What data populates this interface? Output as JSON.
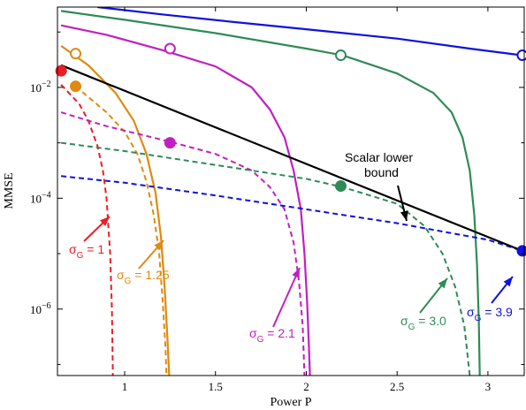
{
  "chart_data": {
    "type": "line",
    "xlabel": "Power P",
    "ylabel": "MMSE",
    "x_range": [
      0.63,
      3.2
    ],
    "ylim_log10": [
      -7.2,
      -0.55
    ],
    "log_y": true,
    "grid": false,
    "x_ticks": [
      {
        "value": 1,
        "label": "1"
      },
      {
        "value": 1.5,
        "label": "1.5"
      },
      {
        "value": 2,
        "label": "2"
      },
      {
        "value": 2.5,
        "label": "2.5"
      },
      {
        "value": 3,
        "label": "3"
      }
    ],
    "y_ticks": [
      {
        "exp": -2,
        "base": "10",
        "sup": "−2"
      },
      {
        "exp": -4,
        "base": "10",
        "sup": "−4"
      },
      {
        "exp": -6,
        "base": "10",
        "sup": "−6"
      }
    ],
    "series": [
      {
        "key": "g1",
        "color": "#ee1c24",
        "solid": [
          [
            0.65,
            -1.6
          ],
          [
            0.66,
            -1.64
          ],
          [
            0.68,
            -1.72
          ]
        ],
        "dashed": [
          [
            0.65,
            -1.95
          ],
          [
            0.75,
            -2.3
          ],
          [
            0.8,
            -2.6
          ],
          [
            0.85,
            -3.05
          ],
          [
            0.88,
            -3.5
          ],
          [
            0.9,
            -4.0
          ],
          [
            0.92,
            -5.0
          ],
          [
            0.93,
            -6.0
          ],
          [
            0.935,
            -7.2
          ]
        ],
        "marker": {
          "x": 0.65,
          "y": -1.7,
          "filled": true
        }
      },
      {
        "key": "g125",
        "color": "#e08a10",
        "solid": [
          [
            0.65,
            -1.25
          ],
          [
            0.8,
            -1.6
          ],
          [
            0.95,
            -2.1
          ],
          [
            1.05,
            -2.6
          ],
          [
            1.12,
            -3.2
          ],
          [
            1.17,
            -3.9
          ],
          [
            1.2,
            -4.7
          ],
          [
            1.22,
            -5.6
          ],
          [
            1.235,
            -6.5
          ],
          [
            1.245,
            -7.2
          ]
        ],
        "dashed": [
          [
            0.73,
            -1.98
          ],
          [
            0.9,
            -2.45
          ],
          [
            1.0,
            -2.8
          ],
          [
            1.07,
            -3.2
          ],
          [
            1.12,
            -3.7
          ],
          [
            1.16,
            -4.3
          ],
          [
            1.19,
            -5.0
          ],
          [
            1.21,
            -5.9
          ],
          [
            1.225,
            -6.7
          ],
          [
            1.23,
            -7.2
          ]
        ],
        "marker_open": {
          "x": 0.73,
          "y": -1.39
        },
        "marker": {
          "x": 0.73,
          "y": -1.98,
          "filled": true
        }
      },
      {
        "key": "g21",
        "color": "#c020c0",
        "solid": [
          [
            0.65,
            -0.88
          ],
          [
            0.9,
            -1.05
          ],
          [
            1.2,
            -1.32
          ],
          [
            1.5,
            -1.62
          ],
          [
            1.7,
            -2.0
          ],
          [
            1.8,
            -2.4
          ],
          [
            1.88,
            -2.9
          ],
          [
            1.93,
            -3.5
          ],
          [
            1.97,
            -4.2
          ],
          [
            1.99,
            -5.0
          ],
          [
            2.005,
            -5.9
          ],
          [
            2.015,
            -6.7
          ],
          [
            2.02,
            -7.2
          ]
        ],
        "dashed": [
          [
            0.65,
            -2.45
          ],
          [
            0.9,
            -2.7
          ],
          [
            1.25,
            -2.98
          ],
          [
            1.5,
            -3.2
          ],
          [
            1.7,
            -3.5
          ],
          [
            1.8,
            -3.8
          ],
          [
            1.88,
            -4.2
          ],
          [
            1.93,
            -4.8
          ],
          [
            1.96,
            -5.5
          ],
          [
            1.98,
            -6.3
          ],
          [
            1.99,
            -7.2
          ]
        ],
        "marker_open": {
          "x": 1.25,
          "y": -1.3
        },
        "marker": {
          "x": 1.25,
          "y": -3.0,
          "filled": true
        }
      },
      {
        "key": "g30",
        "color": "#2e8b57",
        "solid": [
          [
            0.65,
            -0.62
          ],
          [
            1.0,
            -0.78
          ],
          [
            1.5,
            -1.02
          ],
          [
            2.0,
            -1.3
          ],
          [
            2.2,
            -1.42
          ],
          [
            2.5,
            -1.75
          ],
          [
            2.7,
            -2.1
          ],
          [
            2.8,
            -2.45
          ],
          [
            2.86,
            -2.9
          ],
          [
            2.9,
            -3.5
          ],
          [
            2.925,
            -4.3
          ],
          [
            2.94,
            -5.2
          ],
          [
            2.95,
            -6.2
          ],
          [
            2.955,
            -7.2
          ]
        ],
        "dashed": [
          [
            0.65,
            -3.0
          ],
          [
            1.0,
            -3.15
          ],
          [
            1.5,
            -3.4
          ],
          [
            2.0,
            -3.65
          ],
          [
            2.2,
            -3.8
          ],
          [
            2.5,
            -4.1
          ],
          [
            2.65,
            -4.5
          ],
          [
            2.75,
            -5.0
          ],
          [
            2.82,
            -5.6
          ],
          [
            2.87,
            -6.3
          ],
          [
            2.9,
            -7.2
          ]
        ],
        "marker_open": {
          "x": 2.19,
          "y": -1.42
        },
        "marker": {
          "x": 2.19,
          "y": -3.78,
          "filled": true
        }
      },
      {
        "key": "g39",
        "color": "#1010e0",
        "solid": [
          [
            0.85,
            -0.55
          ],
          [
            1.2,
            -0.68
          ],
          [
            1.6,
            -0.82
          ],
          [
            2.0,
            -0.95
          ],
          [
            2.5,
            -1.12
          ],
          [
            2.9,
            -1.3
          ],
          [
            3.19,
            -1.42
          ]
        ],
        "dashed": [
          [
            0.65,
            -3.6
          ],
          [
            1.0,
            -3.72
          ],
          [
            1.5,
            -3.95
          ],
          [
            2.0,
            -4.2
          ],
          [
            2.5,
            -4.45
          ],
          [
            3.0,
            -4.75
          ],
          [
            3.19,
            -4.95
          ]
        ],
        "marker_open": {
          "x": 3.19,
          "y": -1.42
        },
        "marker": {
          "x": 3.19,
          "y": -4.95,
          "filled": true
        }
      }
    ],
    "lower_bound": {
      "color": "#000000",
      "points": [
        [
          0.65,
          -1.6
        ],
        [
          3.19,
          -4.95
        ]
      ]
    },
    "annotations": [
      {
        "key": "bound",
        "lines": [
          "Scalar lower",
          "bound"
        ],
        "color": "#000000"
      },
      {
        "key": "g1",
        "sigma": "σ",
        "sub": "G",
        "value": " = 1",
        "color": "#ee1c24"
      },
      {
        "key": "g125",
        "sigma": "σ",
        "sub": "G",
        "value": " = 1.25",
        "color": "#e08a10"
      },
      {
        "key": "g21",
        "sigma": "σ",
        "sub": "G",
        "value": " = 2.1",
        "color": "#c020c0"
      },
      {
        "key": "g30",
        "sigma": "σ",
        "sub": "G",
        "value": " = 3.0",
        "color": "#2e8b57"
      },
      {
        "key": "g39",
        "sigma": "σ",
        "sub": "G",
        "value": " = 3.9",
        "color": "#1010e0"
      }
    ]
  }
}
